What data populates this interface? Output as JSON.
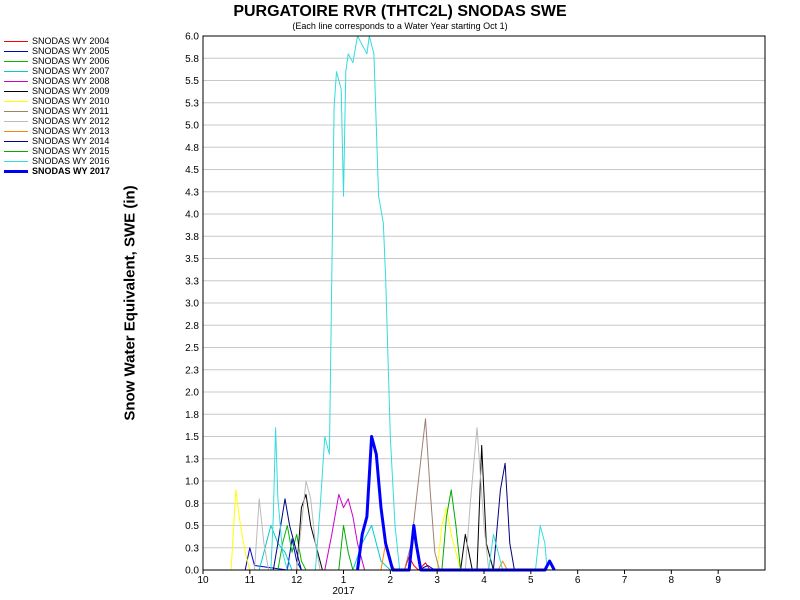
{
  "chart_data": {
    "type": "line",
    "title": "PURGATOIRE RVR (THTC2L) SNODAS SWE",
    "subtitle": "(Each line corresponds to a Water Year starting Oct 1)",
    "ylabel": "Snow Water Equivalent, SWE (in)",
    "xlabel": "",
    "year_label": "2017",
    "ylim": [
      0,
      6.0
    ],
    "y_ticks": [
      "0.0",
      "0.3",
      "0.5",
      "0.8",
      "1.0",
      "1.3",
      "1.5",
      "1.8",
      "2.0",
      "2.3",
      "2.5",
      "2.8",
      "3.0",
      "3.3",
      "3.5",
      "3.8",
      "4.0",
      "4.3",
      "4.5",
      "4.8",
      "5.0",
      "5.3",
      "5.5",
      "5.8",
      "6.0"
    ],
    "x_ticks": [
      "10",
      "11",
      "12",
      "1",
      "2",
      "3",
      "4",
      "5",
      "6",
      "7",
      "8",
      "9"
    ],
    "grid": true,
    "legend_position": "left",
    "series": [
      {
        "name": "SNODAS WY 2004",
        "color": "#ff0000",
        "bold": false,
        "points": [
          [
            4.3,
            0.0
          ],
          [
            4.4,
            0.15
          ],
          [
            4.5,
            0.05
          ],
          [
            4.6,
            0.0
          ],
          [
            4.75,
            0.08
          ],
          [
            4.85,
            0.0
          ]
        ]
      },
      {
        "name": "SNODAS WY 2005",
        "color": "#0000cc",
        "bold": false,
        "points": [
          [
            0.9,
            0.0
          ],
          [
            1.0,
            0.25
          ],
          [
            1.1,
            0.05
          ],
          [
            1.8,
            0.0
          ],
          [
            1.9,
            0.35
          ],
          [
            2.0,
            0.1
          ],
          [
            2.1,
            0.0
          ],
          [
            4.6,
            0.0
          ],
          [
            4.8,
            0.05
          ],
          [
            4.95,
            0.0
          ]
        ]
      },
      {
        "name": "SNODAS WY 2006",
        "color": "#00bb00",
        "bold": false,
        "points": [
          [
            1.6,
            0.0
          ],
          [
            1.7,
            0.3
          ],
          [
            1.8,
            0.5
          ],
          [
            1.9,
            0.2
          ],
          [
            2.0,
            0.4
          ],
          [
            2.1,
            0.1
          ],
          [
            2.2,
            0.0
          ]
        ]
      },
      {
        "name": "SNODAS WY 2007",
        "color": "#00cccc",
        "bold": false,
        "points": [
          [
            1.2,
            0.0
          ],
          [
            1.3,
            0.2
          ],
          [
            1.45,
            0.5
          ],
          [
            1.6,
            0.3
          ],
          [
            1.75,
            0.2
          ],
          [
            1.9,
            0.0
          ],
          [
            3.2,
            0.0
          ],
          [
            3.4,
            0.3
          ],
          [
            3.6,
            0.5
          ],
          [
            3.8,
            0.1
          ],
          [
            4.0,
            0.0
          ]
        ]
      },
      {
        "name": "SNODAS WY 2008",
        "color": "#cc00cc",
        "bold": false,
        "points": [
          [
            2.6,
            0.0
          ],
          [
            2.75,
            0.4
          ],
          [
            2.9,
            0.85
          ],
          [
            3.0,
            0.7
          ],
          [
            3.1,
            0.8
          ],
          [
            3.2,
            0.6
          ],
          [
            3.3,
            0.3
          ],
          [
            3.45,
            0.0
          ]
        ]
      },
      {
        "name": "SNODAS WY 2009",
        "color": "#000000",
        "bold": false,
        "points": [
          [
            2.0,
            0.0
          ],
          [
            2.1,
            0.7
          ],
          [
            2.2,
            0.85
          ],
          [
            2.3,
            0.5
          ],
          [
            2.4,
            0.3
          ],
          [
            2.55,
            0.0
          ],
          [
            5.5,
            0.0
          ],
          [
            5.6,
            0.4
          ],
          [
            5.75,
            0.0
          ],
          [
            5.85,
            0.0
          ],
          [
            5.95,
            1.4
          ],
          [
            6.05,
            0.3
          ],
          [
            6.2,
            0.0
          ]
        ]
      },
      {
        "name": "SNODAS WY 2010",
        "color": "#ffff00",
        "bold": false,
        "points": [
          [
            0.6,
            0.0
          ],
          [
            0.7,
            0.9
          ],
          [
            0.8,
            0.5
          ],
          [
            0.9,
            0.2
          ],
          [
            1.0,
            0.0
          ],
          [
            5.0,
            0.0
          ],
          [
            5.1,
            0.5
          ],
          [
            5.2,
            0.7
          ],
          [
            5.3,
            0.4
          ],
          [
            5.4,
            0.2
          ],
          [
            5.5,
            0.0
          ]
        ]
      },
      {
        "name": "SNODAS WY 2011",
        "color": "#a08070",
        "bold": false,
        "points": [
          [
            4.3,
            0.0
          ],
          [
            4.45,
            0.3
          ],
          [
            4.6,
            1.0
          ],
          [
            4.75,
            1.7
          ],
          [
            4.85,
            0.9
          ],
          [
            4.95,
            0.2
          ],
          [
            5.05,
            0.0
          ]
        ]
      },
      {
        "name": "SNODAS WY 2012",
        "color": "#bbbbbb",
        "bold": false,
        "points": [
          [
            1.1,
            0.0
          ],
          [
            1.2,
            0.8
          ],
          [
            1.3,
            0.3
          ],
          [
            1.4,
            0.0
          ],
          [
            2.0,
            0.0
          ],
          [
            2.1,
            0.5
          ],
          [
            2.2,
            1.0
          ],
          [
            2.3,
            0.8
          ],
          [
            2.4,
            0.3
          ],
          [
            2.5,
            0.0
          ],
          [
            5.6,
            0.0
          ],
          [
            5.7,
            0.7
          ],
          [
            5.85,
            1.6
          ],
          [
            6.0,
            0.5
          ],
          [
            6.1,
            0.0
          ]
        ]
      },
      {
        "name": "SNODAS WY 2013",
        "color": "#ff8800",
        "bold": false,
        "points": [
          [
            3.8,
            0.0
          ],
          [
            3.9,
            0.3
          ],
          [
            4.0,
            0.1
          ],
          [
            4.1,
            0.0
          ],
          [
            6.3,
            0.0
          ],
          [
            6.4,
            0.1
          ],
          [
            6.5,
            0.0
          ]
        ]
      },
      {
        "name": "SNODAS WY 2014",
        "color": "#000080",
        "bold": false,
        "points": [
          [
            1.5,
            0.0
          ],
          [
            1.6,
            0.3
          ],
          [
            1.75,
            0.8
          ],
          [
            1.85,
            0.5
          ],
          [
            2.0,
            0.2
          ],
          [
            2.1,
            0.0
          ],
          [
            6.2,
            0.0
          ],
          [
            6.35,
            0.9
          ],
          [
            6.45,
            1.2
          ],
          [
            6.55,
            0.3
          ],
          [
            6.65,
            0.0
          ]
        ]
      },
      {
        "name": "SNODAS WY 2015",
        "color": "#00aa00",
        "bold": false,
        "points": [
          [
            2.9,
            0.0
          ],
          [
            3.0,
            0.5
          ],
          [
            3.1,
            0.2
          ],
          [
            3.2,
            0.0
          ],
          [
            5.1,
            0.0
          ],
          [
            5.2,
            0.6
          ],
          [
            5.3,
            0.9
          ],
          [
            5.4,
            0.5
          ],
          [
            5.5,
            0.0
          ]
        ]
      },
      {
        "name": "SNODAS WY 2016",
        "color": "#33dddd",
        "bold": false,
        "points": [
          [
            1.45,
            0.0
          ],
          [
            1.5,
            0.6
          ],
          [
            1.55,
            1.6
          ],
          [
            1.6,
            0.8
          ],
          [
            1.7,
            0.2
          ],
          [
            1.8,
            0.0
          ],
          [
            2.4,
            0.0
          ],
          [
            2.5,
            0.7
          ],
          [
            2.6,
            1.5
          ],
          [
            2.7,
            1.3
          ],
          [
            2.75,
            3.3
          ],
          [
            2.8,
            5.2
          ],
          [
            2.85,
            5.6
          ],
          [
            2.95,
            5.4
          ],
          [
            3.0,
            4.2
          ],
          [
            3.05,
            5.6
          ],
          [
            3.1,
            5.8
          ],
          [
            3.2,
            5.7
          ],
          [
            3.3,
            6.0
          ],
          [
            3.4,
            5.9
          ],
          [
            3.5,
            5.8
          ],
          [
            3.55,
            6.0
          ],
          [
            3.65,
            5.8
          ],
          [
            3.75,
            4.2
          ],
          [
            3.85,
            3.9
          ],
          [
            3.9,
            3.3
          ],
          [
            4.0,
            1.5
          ],
          [
            4.1,
            0.5
          ],
          [
            4.2,
            0.0
          ],
          [
            6.1,
            0.0
          ],
          [
            6.2,
            0.4
          ],
          [
            6.3,
            0.2
          ],
          [
            6.4,
            0.0
          ],
          [
            7.1,
            0.0
          ],
          [
            7.2,
            0.5
          ],
          [
            7.3,
            0.3
          ],
          [
            7.35,
            0.0
          ]
        ]
      },
      {
        "name": "SNODAS WY 2017",
        "color": "#0000ff",
        "bold": true,
        "points": [
          [
            3.3,
            0.0
          ],
          [
            3.4,
            0.4
          ],
          [
            3.5,
            0.6
          ],
          [
            3.6,
            1.5
          ],
          [
            3.7,
            1.3
          ],
          [
            3.8,
            0.7
          ],
          [
            3.9,
            0.3
          ],
          [
            4.05,
            0.0
          ],
          [
            4.4,
            0.0
          ],
          [
            4.5,
            0.5
          ],
          [
            4.55,
            0.3
          ],
          [
            4.65,
            0.0
          ],
          [
            7.3,
            0.0
          ],
          [
            7.4,
            0.1
          ],
          [
            7.5,
            0.0
          ]
        ]
      }
    ]
  }
}
